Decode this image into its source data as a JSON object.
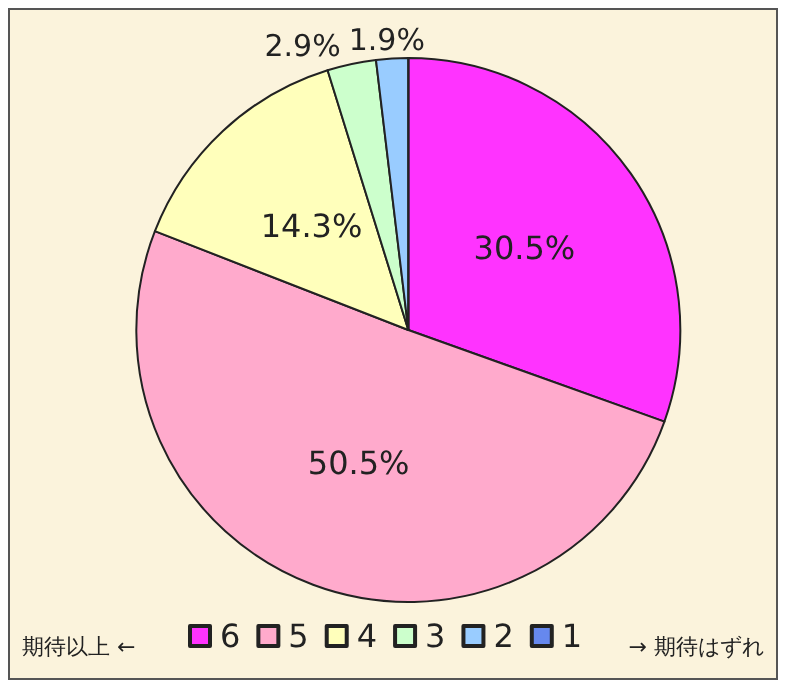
{
  "chart_data": {
    "type": "pie",
    "categories": [
      "6",
      "5",
      "4",
      "3",
      "2",
      "1"
    ],
    "values": [
      30.5,
      50.5,
      14.3,
      2.9,
      1.9,
      0
    ],
    "colors": [
      "#ff33ff",
      "#ffaacc",
      "#ffffbb",
      "#ccffcc",
      "#99ccff",
      "#6688ee"
    ],
    "value_labels": [
      "30.5%",
      "50.5%",
      "14.3%",
      "2.9%",
      "1.9%",
      null
    ],
    "legend": "bottom",
    "annotations": [
      "期待以上 ←",
      "→ 期待はずれ"
    ]
  }
}
